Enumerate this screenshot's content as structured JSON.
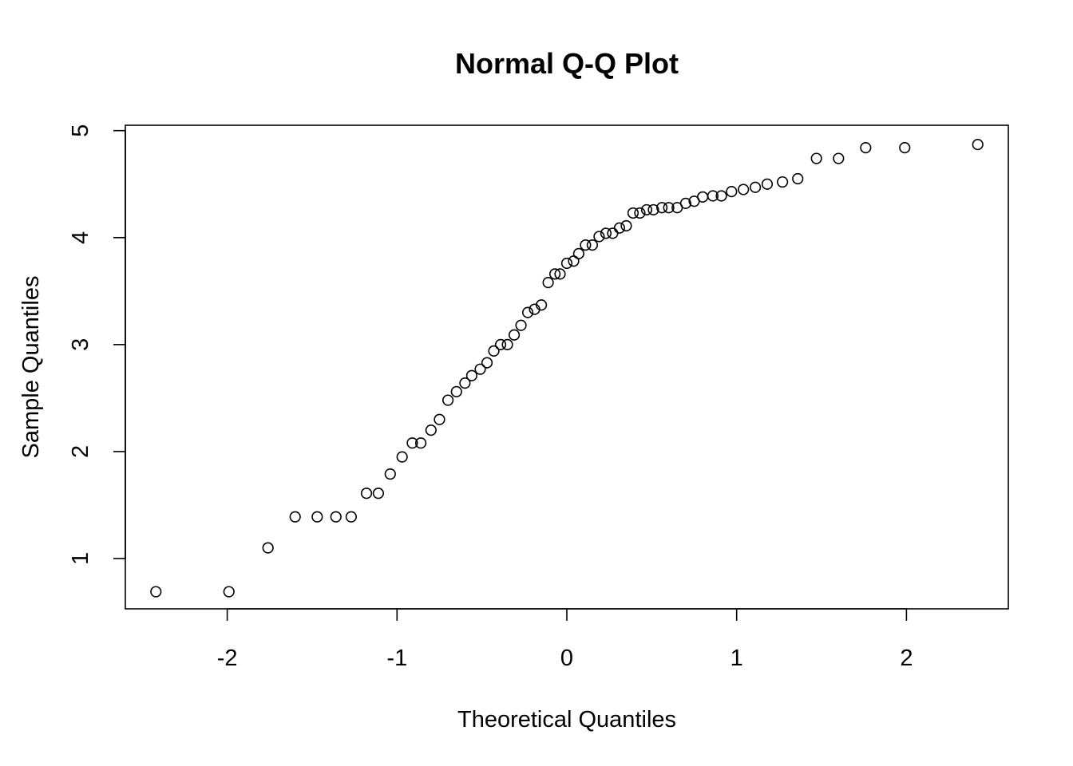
{
  "chart_data": {
    "type": "scatter",
    "title": "Normal Q-Q Plot",
    "xlabel": "Theoretical Quantiles",
    "ylabel": "Sample Quantiles",
    "xlim": [
      -2.6,
      2.6
    ],
    "ylim": [
      0.53,
      5.05
    ],
    "x_ticks": [
      -2,
      -1,
      0,
      1,
      2
    ],
    "x_tick_labels": [
      "-2",
      "-1",
      "0",
      "1",
      "2"
    ],
    "y_ticks": [
      1,
      2,
      3,
      4,
      5
    ],
    "y_tick_labels": [
      "1",
      "2",
      "3",
      "4",
      "5"
    ],
    "grid": false,
    "legend": "none",
    "marker": "open-circle",
    "point_color": "#000000",
    "points": [
      {
        "x": -2.42,
        "y": 0.69
      },
      {
        "x": -1.99,
        "y": 0.69
      },
      {
        "x": -1.76,
        "y": 1.1
      },
      {
        "x": -1.6,
        "y": 1.39
      },
      {
        "x": -1.47,
        "y": 1.39
      },
      {
        "x": -1.36,
        "y": 1.39
      },
      {
        "x": -1.27,
        "y": 1.39
      },
      {
        "x": -1.18,
        "y": 1.61
      },
      {
        "x": -1.11,
        "y": 1.61
      },
      {
        "x": -1.04,
        "y": 1.79
      },
      {
        "x": -0.97,
        "y": 1.95
      },
      {
        "x": -0.91,
        "y": 2.08
      },
      {
        "x": -0.86,
        "y": 2.08
      },
      {
        "x": -0.8,
        "y": 2.2
      },
      {
        "x": -0.75,
        "y": 2.3
      },
      {
        "x": -0.7,
        "y": 2.48
      },
      {
        "x": -0.65,
        "y": 2.56
      },
      {
        "x": -0.6,
        "y": 2.64
      },
      {
        "x": -0.56,
        "y": 2.71
      },
      {
        "x": -0.51,
        "y": 2.77
      },
      {
        "x": -0.47,
        "y": 2.83
      },
      {
        "x": -0.43,
        "y": 2.94
      },
      {
        "x": -0.39,
        "y": 3.0
      },
      {
        "x": -0.35,
        "y": 3.0
      },
      {
        "x": -0.31,
        "y": 3.09
      },
      {
        "x": -0.27,
        "y": 3.18
      },
      {
        "x": -0.23,
        "y": 3.3
      },
      {
        "x": -0.19,
        "y": 3.33
      },
      {
        "x": -0.15,
        "y": 3.37
      },
      {
        "x": -0.11,
        "y": 3.58
      },
      {
        "x": -0.07,
        "y": 3.66
      },
      {
        "x": -0.04,
        "y": 3.66
      },
      {
        "x": 0.0,
        "y": 3.76
      },
      {
        "x": 0.04,
        "y": 3.78
      },
      {
        "x": 0.07,
        "y": 3.85
      },
      {
        "x": 0.11,
        "y": 3.93
      },
      {
        "x": 0.15,
        "y": 3.93
      },
      {
        "x": 0.19,
        "y": 4.01
      },
      {
        "x": 0.23,
        "y": 4.04
      },
      {
        "x": 0.27,
        "y": 4.04
      },
      {
        "x": 0.31,
        "y": 4.09
      },
      {
        "x": 0.35,
        "y": 4.11
      },
      {
        "x": 0.39,
        "y": 4.23
      },
      {
        "x": 0.43,
        "y": 4.23
      },
      {
        "x": 0.47,
        "y": 4.26
      },
      {
        "x": 0.51,
        "y": 4.26
      },
      {
        "x": 0.56,
        "y": 4.28
      },
      {
        "x": 0.6,
        "y": 4.28
      },
      {
        "x": 0.65,
        "y": 4.28
      },
      {
        "x": 0.7,
        "y": 4.32
      },
      {
        "x": 0.75,
        "y": 4.34
      },
      {
        "x": 0.8,
        "y": 4.38
      },
      {
        "x": 0.86,
        "y": 4.39
      },
      {
        "x": 0.91,
        "y": 4.39
      },
      {
        "x": 0.97,
        "y": 4.43
      },
      {
        "x": 1.04,
        "y": 4.45
      },
      {
        "x": 1.11,
        "y": 4.47
      },
      {
        "x": 1.18,
        "y": 4.5
      },
      {
        "x": 1.27,
        "y": 4.52
      },
      {
        "x": 1.36,
        "y": 4.55
      },
      {
        "x": 1.47,
        "y": 4.74
      },
      {
        "x": 1.6,
        "y": 4.74
      },
      {
        "x": 1.76,
        "y": 4.84
      },
      {
        "x": 1.99,
        "y": 4.84
      },
      {
        "x": 2.42,
        "y": 4.87
      }
    ]
  }
}
